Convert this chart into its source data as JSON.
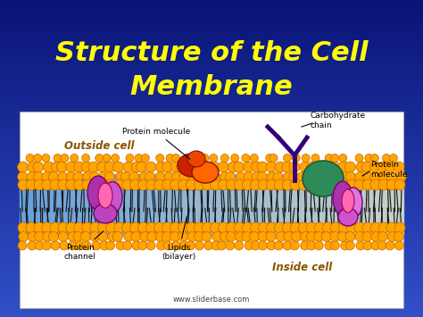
{
  "title_line1": "Structure of the Cell",
  "title_line2": "Membrane",
  "title_color": "#FFFF00",
  "title_fontsize": 22,
  "bg_color": "#1E3A8A",
  "diagram_bg": "#ffffff",
  "watermark": "www.sliderbase.com",
  "orange_color": "#FFA500",
  "orange_edge": "#CC6600",
  "lipid_bg_left": "#87CEEB",
  "lipid_bg_right": "#ADD8E6",
  "purple_dark": "#9B2D8E",
  "purple_light": "#DA70D6",
  "pink_color": "#FF69B4",
  "red_color": "#CC2200",
  "orange_prot": "#FF6600",
  "green_color": "#2E8B57",
  "carb_color": "#330077",
  "label_color_italic": "#8B4500",
  "label_color_normal": "#000000"
}
